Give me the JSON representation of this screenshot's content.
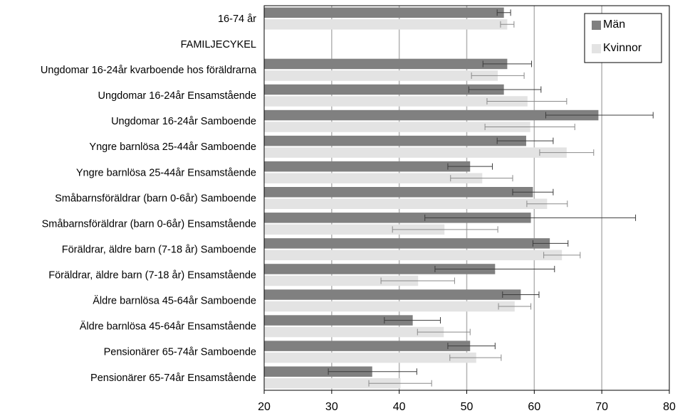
{
  "chart_data": {
    "type": "bar",
    "orientation": "horizontal",
    "categories": [
      "16-74 år",
      "FAMILJECYKEL",
      "Ungdomar 16-24år kvarboende hos föräldrarna",
      "Ungdomar 16-24år Ensamstående",
      "Ungdomar 16-24år Samboende",
      "Yngre barnlösa 25-44år Samboende",
      "Yngre barnlösa 25-44år Ensamstående",
      "Småbarnsföräldrar (barn 0-6år) Samboende",
      "Småbarnsföräldrar (barn 0-6år) Ensamstående",
      "Föräldrar, äldre barn (7-18 år) Samboende",
      "Föräldrar, äldre barn (7-18 år) Ensamstående",
      "Äldre barnlösa 45-64år Samboende",
      "Äldre barnlösa 45-64år Ensamstående",
      "Pensionärer 65-74år Samboende",
      "Pensionärer 65-74år Ensamstående"
    ],
    "series": [
      {
        "name": "Män",
        "color": "#808080",
        "values": [
          55.5,
          null,
          56.0,
          55.5,
          69.5,
          58.8,
          50.5,
          59.8,
          59.5,
          62.3,
          54.2,
          58.0,
          42.0,
          50.5,
          36.0
        ],
        "error_low": [
          54.5,
          null,
          52.4,
          50.3,
          61.7,
          54.5,
          47.2,
          56.8,
          43.8,
          59.8,
          45.3,
          55.3,
          37.8,
          47.2,
          29.5
        ],
        "error_high": [
          56.5,
          null,
          59.6,
          61.0,
          77.6,
          62.8,
          53.8,
          62.8,
          75.0,
          65.0,
          63.0,
          60.7,
          46.1,
          54.2,
          42.6
        ]
      },
      {
        "name": "Kvinnor",
        "color": "#e3e3e3",
        "values": [
          56.0,
          null,
          54.6,
          59.0,
          59.4,
          64.8,
          52.3,
          61.9,
          46.7,
          64.1,
          42.8,
          57.1,
          46.6,
          51.4,
          40.2
        ],
        "error_low": [
          55.0,
          null,
          50.7,
          53.0,
          52.7,
          60.8,
          47.6,
          58.9,
          39.0,
          61.4,
          37.3,
          54.7,
          42.7,
          47.5,
          35.5
        ],
        "error_high": [
          57.0,
          null,
          58.5,
          64.8,
          66.0,
          68.8,
          56.8,
          64.9,
          54.6,
          66.8,
          48.2,
          59.5,
          50.5,
          55.1,
          44.8
        ]
      }
    ],
    "xlim": [
      20,
      80
    ],
    "xticks": [
      20,
      30,
      40,
      50,
      60,
      70,
      80
    ],
    "grid": true,
    "legend_position": "top-right"
  }
}
